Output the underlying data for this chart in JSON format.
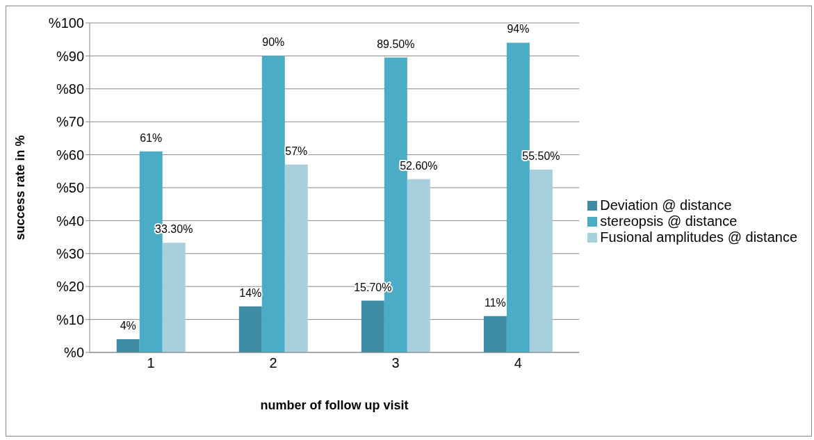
{
  "chart_data": {
    "type": "bar",
    "xlabel": "number of follow up visit",
    "ylabel": "success rate in %",
    "categories": [
      "1",
      "2",
      "3",
      "4"
    ],
    "series": [
      {
        "name": "Deviation @ distance",
        "color": "#3d8ca3",
        "values": [
          4,
          14,
          15.7,
          11
        ],
        "value_labels": [
          "4%",
          "14%",
          "15.70%",
          "11%"
        ]
      },
      {
        "name": "stereopsis @ distance",
        "color": "#4bacc6",
        "values": [
          61,
          90,
          89.5,
          94
        ],
        "value_labels": [
          "61%",
          "90%",
          "89.50%",
          "94%"
        ]
      },
      {
        "name": "Fusional amplitudes @ distance",
        "color": "#a8cfdc",
        "values": [
          33.3,
          57,
          52.6,
          55.5
        ],
        "value_labels": [
          "33.30%",
          "57%",
          "52.60%",
          "55.50%"
        ]
      }
    ],
    "ylim": [
      0,
      100
    ],
    "yticks": [
      {
        "value": 0,
        "label": "%0"
      },
      {
        "value": 10,
        "label": "%10"
      },
      {
        "value": 20,
        "label": "%20"
      },
      {
        "value": 30,
        "label": "%30"
      },
      {
        "value": 40,
        "label": "%40"
      },
      {
        "value": 50,
        "label": "%50"
      },
      {
        "value": 60,
        "label": "%60"
      },
      {
        "value": 70,
        "label": "%70"
      },
      {
        "value": 80,
        "label": "%80"
      },
      {
        "value": 90,
        "label": "%90"
      },
      {
        "value": 100,
        "label": "%100"
      }
    ],
    "grid": "y",
    "legend": "right"
  }
}
